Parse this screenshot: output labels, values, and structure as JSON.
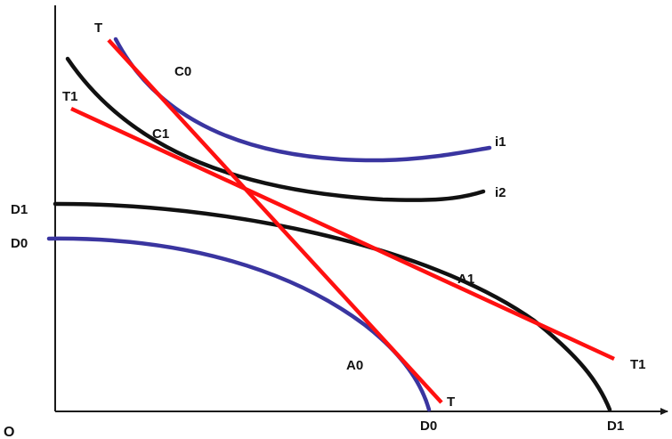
{
  "labels": {
    "origin": "O",
    "axis_y_d1": "D1",
    "axis_y_d0": "D0",
    "axis_x_d0": "D0",
    "axis_x_d1": "D1",
    "line_t_top": "T",
    "line_t_bottom": "T",
    "line_t1_left": "T1",
    "line_t1_right": "T1",
    "curve_i1": "i1",
    "curve_i2": "i2",
    "point_c0": "C0",
    "point_c1": "C1",
    "point_a0": "A0",
    "point_a1": "A1"
  },
  "colors": {
    "ppf_d1": "#111111",
    "ppf_d0": "#3a35a0",
    "indifference_i1": "#3a35a0",
    "indifference_i2": "#111111",
    "price_lines": "#ff1010",
    "axes": "#1a1a1a"
  }
}
